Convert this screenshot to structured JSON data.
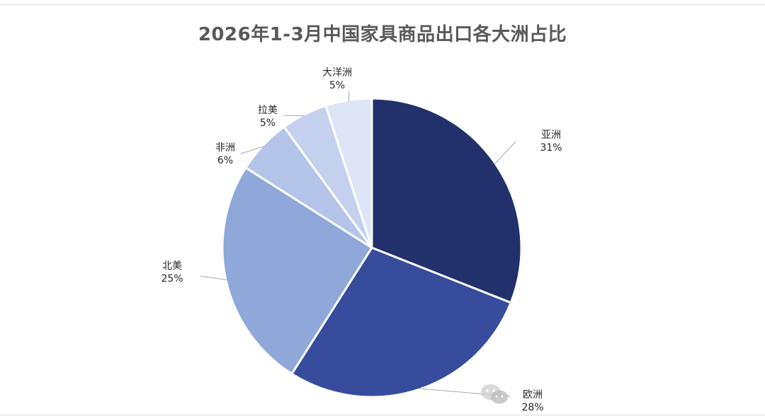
{
  "chart_data": {
    "type": "pie",
    "title": "2026年1-3月中国家具商品出口各大洲占比",
    "slices": [
      {
        "label": "亚洲",
        "value": 31,
        "value_label": "31%",
        "color": "#22306b"
      },
      {
        "label": "欧洲",
        "value": 28,
        "value_label": "28%",
        "color": "#374c9d"
      },
      {
        "label": "北美",
        "value": 25,
        "value_label": "25%",
        "color": "#8fa7d9"
      },
      {
        "label": "非洲",
        "value": 6,
        "value_label": "6%",
        "color": "#b4c4e8"
      },
      {
        "label": "拉美",
        "value": 5,
        "value_label": "5%",
        "color": "#c4d1ee"
      },
      {
        "label": "大洋洲",
        "value": 5,
        "value_label": "5%",
        "color": "#dde5f6"
      }
    ],
    "start_angle": "12 o'clock",
    "direction": "clockwise",
    "legend": "none",
    "label_style": "outside with leader lines"
  }
}
